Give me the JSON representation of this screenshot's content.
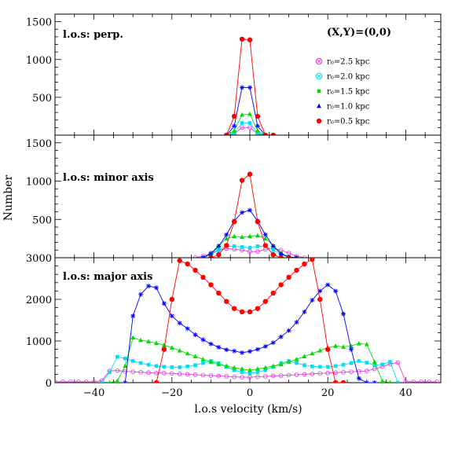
{
  "figure": {
    "ylabel": "Number",
    "xlabel": "l.o.s velocity (km/s)",
    "annotation": "(X,Y)=(0,0)",
    "legend": [
      {
        "label": "r₀=2.5 kpc",
        "color": "#e040e0",
        "marker": "circle-x"
      },
      {
        "label": "r₀=2.0 kpc",
        "color": "#00e0f0",
        "marker": "circle-x-cyan"
      },
      {
        "label": "r₀=1.5 kpc",
        "color": "#00dd00",
        "marker": "square"
      },
      {
        "label": "r₀=1.0 kpc",
        "color": "#0000ff",
        "marker": "triangle"
      },
      {
        "label": "r₀=0.5 kpc",
        "color": "#ff0000",
        "marker": "disk"
      }
    ]
  },
  "chart_data": [
    {
      "type": "line",
      "panel_label": "l.o.s: perp.",
      "xlim": [
        -50,
        49
      ],
      "ylim": [
        0,
        1600
      ],
      "yticks": [
        500,
        1000,
        1500
      ],
      "xticks": [
        -40,
        -20,
        0,
        20,
        40
      ],
      "series": [
        {
          "name": "r₀=0.5 kpc",
          "color": "#ff0000",
          "marker": "disk",
          "x": [
            -6,
            -4,
            -2,
            0,
            2,
            4,
            6
          ],
          "y": [
            0,
            250,
            1270,
            1260,
            250,
            0,
            0
          ]
        },
        {
          "name": "r₀=1.0 kpc",
          "color": "#0000ff",
          "marker": "star",
          "x": [
            -6,
            -4,
            -2,
            0,
            2,
            4,
            6
          ],
          "y": [
            0,
            120,
            630,
            630,
            120,
            0,
            0
          ]
        },
        {
          "name": "r₀=1.5 kpc",
          "color": "#00dd00",
          "marker": "triangle",
          "x": [
            -6,
            -4,
            -2,
            0,
            2,
            4,
            6
          ],
          "y": [
            0,
            60,
            270,
            280,
            60,
            0,
            0
          ]
        },
        {
          "name": "r₀=2.0 kpc",
          "color": "#00e0f0",
          "marker": "square",
          "x": [
            -6,
            -4,
            -2,
            0,
            2,
            4,
            6
          ],
          "y": [
            0,
            30,
            160,
            160,
            30,
            0,
            0
          ]
        },
        {
          "name": "r₀=2.5 kpc",
          "color": "#e040e0",
          "marker": "circle",
          "x": [
            -6,
            -4,
            -2,
            0,
            2,
            4,
            6
          ],
          "y": [
            0,
            20,
            100,
            100,
            20,
            0,
            0
          ]
        }
      ]
    },
    {
      "type": "line",
      "panel_label": "l.o.s: minor axis",
      "xlim": [
        -50,
        49
      ],
      "ylim": [
        0,
        1600
      ],
      "yticks": [
        500,
        1000,
        1500
      ],
      "xticks": [
        -40,
        -20,
        0,
        20,
        40
      ],
      "series": [
        {
          "name": "r₀=0.5 kpc",
          "color": "#ff0000",
          "marker": "disk",
          "x": [
            -10,
            -8,
            -6,
            -4,
            -2,
            0,
            2,
            4,
            6,
            8,
            10
          ],
          "y": [
            0,
            40,
            160,
            470,
            1010,
            1090,
            470,
            160,
            40,
            0,
            0
          ]
        },
        {
          "name": "r₀=1.0 kpc",
          "color": "#0000ff",
          "marker": "star",
          "x": [
            -12,
            -10,
            -8,
            -6,
            -4,
            -2,
            0,
            2,
            4,
            6,
            8,
            10,
            12
          ],
          "y": [
            0,
            50,
            150,
            300,
            480,
            590,
            620,
            480,
            300,
            150,
            50,
            10,
            0
          ]
        },
        {
          "name": "r₀=1.5 kpc",
          "color": "#00dd00",
          "marker": "triangle",
          "x": [
            -12,
            -10,
            -8,
            -6,
            -4,
            -2,
            0,
            2,
            4,
            6,
            8,
            10,
            12
          ],
          "y": [
            0,
            60,
            160,
            250,
            280,
            270,
            280,
            290,
            250,
            160,
            60,
            10,
            0
          ]
        },
        {
          "name": "r₀=2.0 kpc",
          "color": "#00e0f0",
          "marker": "square",
          "x": [
            -12,
            -10,
            -8,
            -6,
            -4,
            -2,
            0,
            2,
            4,
            6,
            8,
            10,
            12
          ],
          "y": [
            0,
            40,
            100,
            150,
            150,
            140,
            130,
            150,
            150,
            100,
            40,
            10,
            0
          ]
        },
        {
          "name": "r₀=2.5 kpc",
          "color": "#e040e0",
          "marker": "circle",
          "x": [
            -14,
            -12,
            -10,
            -8,
            -6,
            -4,
            -2,
            0,
            2,
            4,
            6,
            8,
            10,
            12,
            14
          ],
          "y": [
            0,
            20,
            60,
            100,
            120,
            110,
            100,
            80,
            80,
            110,
            120,
            100,
            60,
            20,
            0
          ]
        }
      ]
    },
    {
      "type": "line",
      "panel_label": "l.o.s: major axis",
      "xlim": [
        -50,
        49
      ],
      "ylim": [
        0,
        3000
      ],
      "yticks": [
        0,
        1000,
        2000,
        3000
      ],
      "xticks": [
        -40,
        -20,
        0,
        20,
        40
      ],
      "series": [
        {
          "name": "r₀=0.5 kpc",
          "color": "#ff0000",
          "marker": "disk",
          "x": [
            -24,
            -22,
            -20,
            -18,
            -16,
            -14,
            -12,
            -10,
            -8,
            -6,
            -4,
            -2,
            0,
            2,
            4,
            6,
            8,
            10,
            12,
            14,
            16,
            18,
            20,
            22,
            24
          ],
          "y": [
            0,
            800,
            2000,
            2930,
            2850,
            2700,
            2530,
            2350,
            2150,
            1950,
            1780,
            1700,
            1700,
            1780,
            1950,
            2150,
            2350,
            2530,
            2700,
            2850,
            2960,
            2000,
            800,
            0,
            0
          ]
        },
        {
          "name": "r₀=1.0 kpc",
          "color": "#0000ff",
          "marker": "star",
          "x": [
            -32,
            -30,
            -28,
            -26,
            -24,
            -22,
            -20,
            -18,
            -16,
            -14,
            -12,
            -10,
            -8,
            -6,
            -4,
            -2,
            0,
            2,
            4,
            6,
            8,
            10,
            12,
            14,
            16,
            18,
            20,
            22,
            24,
            26,
            28,
            30,
            32
          ],
          "y": [
            0,
            1600,
            2120,
            2320,
            2280,
            1900,
            1600,
            1430,
            1300,
            1150,
            1030,
            930,
            850,
            790,
            760,
            720,
            750,
            800,
            870,
            960,
            1100,
            1250,
            1450,
            1700,
            1980,
            2200,
            2350,
            2200,
            1650,
            800,
            100,
            0,
            0
          ]
        },
        {
          "name": "r₀=1.5 kpc",
          "color": "#00dd00",
          "marker": "triangle",
          "x": [
            -36,
            -34,
            -32,
            -30,
            -28,
            -26,
            -24,
            -22,
            -20,
            -18,
            -16,
            -14,
            -12,
            -10,
            -8,
            -6,
            -4,
            -2,
            0,
            2,
            4,
            6,
            8,
            10,
            12,
            14,
            16,
            18,
            20,
            22,
            24,
            26,
            28,
            30,
            32,
            34,
            36
          ],
          "y": [
            0,
            40,
            400,
            1080,
            1020,
            990,
            950,
            900,
            840,
            770,
            700,
            630,
            560,
            500,
            440,
            400,
            360,
            330,
            300,
            330,
            360,
            400,
            440,
            500,
            560,
            630,
            700,
            770,
            840,
            880,
            860,
            880,
            940,
            920,
            500,
            40,
            0
          ]
        },
        {
          "name": "r₀=2.0 kpc",
          "color": "#00e0f0",
          "marker": "square",
          "x": [
            -38,
            -36,
            -34,
            -32,
            -30,
            -28,
            -26,
            -24,
            -22,
            -20,
            -18,
            -16,
            -14,
            -12,
            -10,
            -8,
            -6,
            -4,
            -2,
            0,
            2,
            4,
            6,
            8,
            10,
            12,
            14,
            16,
            18,
            20,
            22,
            24,
            26,
            28,
            30,
            32,
            34,
            36,
            38
          ],
          "y": [
            0,
            250,
            620,
            580,
            520,
            470,
            430,
            400,
            380,
            370,
            370,
            390,
            420,
            470,
            520,
            470,
            380,
            300,
            250,
            220,
            250,
            300,
            380,
            470,
            520,
            470,
            420,
            390,
            380,
            380,
            400,
            430,
            470,
            520,
            480,
            420,
            440,
            500,
            0
          ]
        },
        {
          "name": "r₀=2.5 kpc",
          "color": "#e040e0",
          "marker": "circle",
          "x": [
            -50,
            -48,
            -46,
            -44,
            -42,
            -40,
            -38,
            -36,
            -34,
            -32,
            -30,
            -28,
            -26,
            -24,
            -22,
            -20,
            -18,
            -16,
            -14,
            -12,
            -10,
            -8,
            -6,
            -4,
            -2,
            0,
            2,
            4,
            6,
            8,
            10,
            12,
            14,
            16,
            18,
            20,
            22,
            24,
            26,
            28,
            30,
            32,
            34,
            36,
            38,
            40,
            42,
            44,
            46,
            48
          ],
          "y": [
            20,
            20,
            20,
            20,
            20,
            20,
            50,
            280,
            290,
            270,
            260,
            250,
            240,
            230,
            230,
            220,
            210,
            200,
            190,
            180,
            170,
            160,
            150,
            140,
            130,
            130,
            140,
            150,
            160,
            170,
            180,
            190,
            200,
            210,
            220,
            230,
            240,
            250,
            260,
            270,
            280,
            330,
            380,
            450,
            480,
            30,
            20,
            20,
            20,
            20
          ]
        }
      ]
    }
  ]
}
